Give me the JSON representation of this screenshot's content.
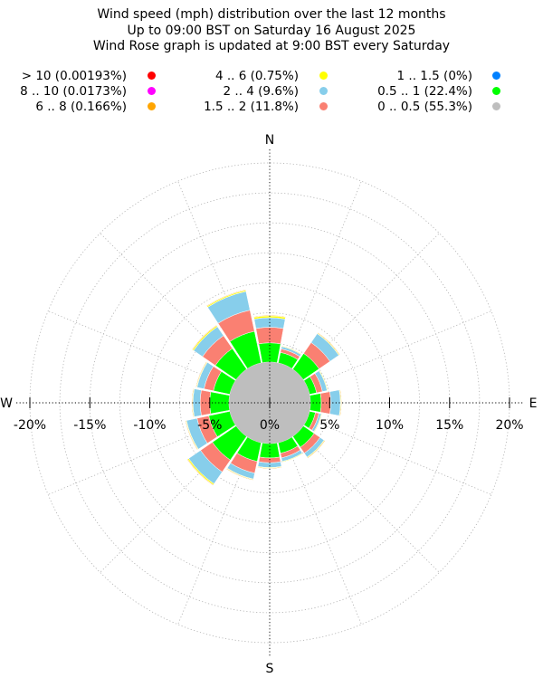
{
  "chart_data": {
    "type": "wind-rose",
    "title": [
      "Wind speed (mph) distribution over the last 12 months",
      "Up to 09:00 BST on Saturday 16 August 2025",
      "Wind Rose graph is updated at 9:00 BST every Saturday"
    ],
    "calm_percent": 3.4,
    "radial_ticks": [
      "-20%",
      "-15%",
      "-10%",
      "-5%",
      "0%",
      "5%",
      "10%",
      "15%",
      "20%"
    ],
    "radial_tick_values": [
      -20,
      -15,
      -10,
      -5,
      0,
      5,
      10,
      15,
      20
    ],
    "radial_max": 20,
    "grid_rings": [
      2.5,
      5,
      7.5,
      10,
      12.5,
      15,
      17.5,
      20
    ],
    "grid": true,
    "legend_placement": "top",
    "compass_labels": {
      "n": "N",
      "e": "E",
      "s": "S",
      "w": "W"
    },
    "legend": [
      {
        "label": "> 10 (0.00193%)",
        "color": "#ff0000"
      },
      {
        "label": "8 .. 10 (0.0173%)",
        "color": "#ff00ff"
      },
      {
        "label": "6 .. 8 (0.166%)",
        "color": "#ffa500"
      },
      {
        "label": "4 .. 6 (0.75%)",
        "color": "#ffff00"
      },
      {
        "label": "2 .. 4 (9.6%)",
        "color": "#87ceeb"
      },
      {
        "label": "1.5 .. 2 (11.8%)",
        "color": "#fa8072"
      },
      {
        "label": "1 .. 1.5 (0%)",
        "color": "#0080ff"
      },
      {
        "label": "0.5 .. 1 (22.4%)",
        "color": "#00ff00"
      },
      {
        "label": "0 .. 0.5 (55.3%)",
        "color": "#bebebe"
      }
    ],
    "stack_order": [
      "0 .. 0.5",
      "0.5 .. 1",
      "1 .. 1.5",
      "1.5 .. 2",
      "2 .. 4",
      "4 .. 6",
      "6 .. 8",
      "8 .. 10",
      "> 10"
    ],
    "directions": [
      {
        "dir": "N",
        "cum": [
          3.4,
          5.0,
          5.0,
          6.3,
          7.1,
          7.25,
          7.3,
          7.3,
          7.3
        ]
      },
      {
        "dir": "NNE",
        "cum": [
          3.4,
          4.3,
          4.3,
          4.6,
          4.8,
          4.85,
          4.85,
          4.85,
          4.85
        ]
      },
      {
        "dir": "NE",
        "cum": [
          3.4,
          5.0,
          5.0,
          6.1,
          7.0,
          7.05,
          7.1,
          7.1,
          7.1
        ]
      },
      {
        "dir": "ENE",
        "cum": [
          3.4,
          4.0,
          4.0,
          4.5,
          4.9,
          4.95,
          4.95,
          4.95,
          4.95
        ]
      },
      {
        "dir": "E",
        "cum": [
          3.4,
          4.3,
          4.3,
          5.1,
          5.9,
          5.95,
          6.0,
          6.0,
          6.0
        ]
      },
      {
        "dir": "ESE",
        "cum": [
          3.4,
          3.9,
          3.9,
          4.2,
          4.4,
          4.45,
          4.45,
          4.45,
          4.45
        ]
      },
      {
        "dir": "SE",
        "cum": [
          3.4,
          4.5,
          4.5,
          5.1,
          5.5,
          5.55,
          5.6,
          5.6,
          5.6
        ]
      },
      {
        "dir": "SSE",
        "cum": [
          3.4,
          4.3,
          4.3,
          4.7,
          5.0,
          5.05,
          5.05,
          5.05,
          5.05
        ]
      },
      {
        "dir": "S",
        "cum": [
          3.4,
          4.6,
          4.6,
          5.0,
          5.4,
          5.45,
          5.5,
          5.5,
          5.5
        ]
      },
      {
        "dir": "SSW",
        "cum": [
          3.4,
          5.0,
          5.0,
          6.0,
          6.5,
          6.55,
          6.6,
          6.6,
          6.6
        ]
      },
      {
        "dir": "SW",
        "cum": [
          3.4,
          5.8,
          5.8,
          7.0,
          8.2,
          8.3,
          8.35,
          8.35,
          8.35
        ]
      },
      {
        "dir": "WSW",
        "cum": [
          3.4,
          5.2,
          5.2,
          6.2,
          7.1,
          7.15,
          7.2,
          7.2,
          7.2
        ]
      },
      {
        "dir": "W",
        "cum": [
          3.4,
          5.0,
          5.0,
          5.8,
          6.4,
          6.45,
          6.5,
          6.5,
          6.5
        ]
      },
      {
        "dir": "WNW",
        "cum": [
          3.4,
          4.8,
          4.8,
          5.6,
          6.2,
          6.25,
          6.3,
          6.3,
          6.3
        ]
      },
      {
        "dir": "NW",
        "cum": [
          3.4,
          5.5,
          5.5,
          6.8,
          7.7,
          7.8,
          7.85,
          7.85,
          7.85
        ]
      },
      {
        "dir": "NNW",
        "cum": [
          3.4,
          6.1,
          6.1,
          7.9,
          9.5,
          9.6,
          9.65,
          9.65,
          9.65
        ]
      }
    ]
  }
}
